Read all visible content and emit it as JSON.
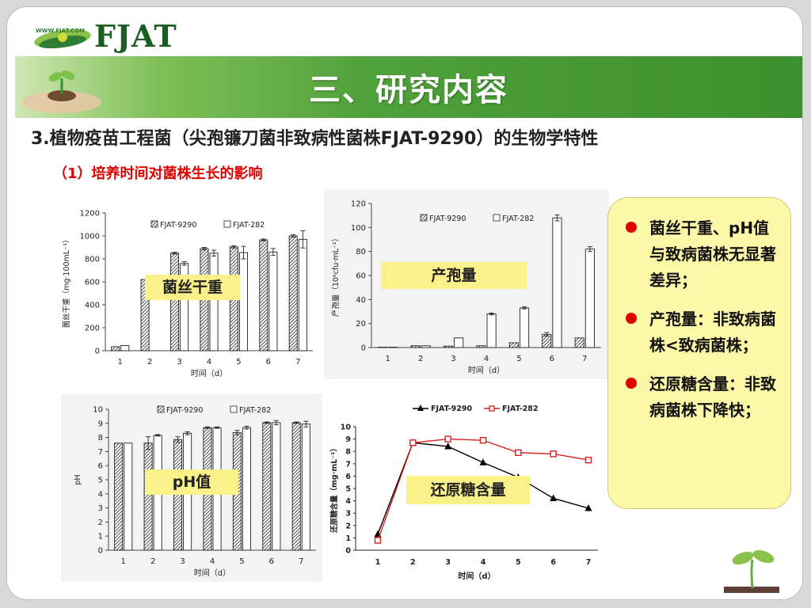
{
  "logo": {
    "brand": "FJAT",
    "url": "WWW.FJAT.COM"
  },
  "banner": {
    "title": "三、研究内容"
  },
  "subtitle": "3.植物疫苗工程菌（尖孢镰刀菌非致病性菌株FJAT-9290）的生物学特性",
  "section": "（1）培养时间对菌株生长的影响",
  "note": {
    "items": [
      "菌丝干重、pH值与致病菌株无显著差异；",
      "产孢量：非致病菌株<致病菌株；",
      "还原糖含量：非致病菌株下降快；"
    ]
  },
  "colors": {
    "accent_red": "#e00000",
    "banner_green": "#4fa13a",
    "note_yellow": "#fdf7a8",
    "tag_yellow": "#fbf18a"
  },
  "chart_data": [
    {
      "type": "bar",
      "tag": "菌丝干重",
      "categories": [
        "1",
        "2",
        "3",
        "4",
        "5",
        "6",
        "7"
      ],
      "series": [
        {
          "name": "FJAT-9290",
          "values": [
            35,
            620,
            850,
            890,
            905,
            965,
            1000
          ],
          "errors": [
            0,
            0,
            8,
            10,
            10,
            8,
            10
          ]
        },
        {
          "name": "FJAT-282",
          "values": [
            45,
            0,
            760,
            850,
            855,
            860,
            970
          ],
          "errors": [
            0,
            0,
            15,
            25,
            55,
            30,
            75
          ]
        }
      ],
      "xlabel": "时间（d）",
      "ylabel": "菌丝干重（mg·100mL⁻¹）",
      "ylim": [
        0,
        1200
      ],
      "yticks": [
        "0",
        "200",
        "400",
        "600",
        "800",
        "1000",
        "1200"
      ]
    },
    {
      "type": "bar",
      "tag": "产孢量",
      "categories": [
        "1",
        "2",
        "3",
        "4",
        "5",
        "6",
        "7"
      ],
      "series": [
        {
          "name": "FJAT-9290",
          "values": [
            0.3,
            1.5,
            1.2,
            1.5,
            4,
            11,
            8
          ],
          "errors": [
            0,
            0,
            0,
            0,
            0,
            1.5,
            0
          ]
        },
        {
          "name": "FJAT-282",
          "values": [
            0.3,
            1.5,
            8,
            28,
            33,
            108,
            82
          ],
          "errors": [
            0,
            0,
            0,
            0.8,
            0.8,
            2.5,
            2
          ]
        }
      ],
      "xlabel": "时间（d）",
      "ylabel": "产孢量（10⁶cfu·mL⁻¹）",
      "ylim": [
        0,
        120
      ],
      "yticks": [
        "0",
        "20",
        "40",
        "60",
        "80",
        "100",
        "120"
      ]
    },
    {
      "type": "bar",
      "tag": "pH值",
      "categories": [
        "1",
        "2",
        "3",
        "4",
        "5",
        "6",
        "7"
      ],
      "series": [
        {
          "name": "FJAT-9290",
          "values": [
            7.6,
            7.6,
            7.85,
            8.7,
            8.35,
            9.05,
            9.05
          ],
          "errors": [
            0,
            0.45,
            0.2,
            0.05,
            0.15,
            0.05,
            0.05
          ]
        },
        {
          "name": "FJAT-282",
          "values": [
            7.6,
            8.15,
            8.3,
            8.7,
            8.7,
            9.05,
            8.95
          ],
          "errors": [
            0,
            0.05,
            0.1,
            0.05,
            0.1,
            0.15,
            0.2
          ]
        }
      ],
      "xlabel": "时间（d）",
      "ylabel": "pH",
      "ylim": [
        0,
        10
      ],
      "yticks": [
        "0",
        "1",
        "2",
        "3",
        "4",
        "5",
        "6",
        "7",
        "8",
        "9",
        "10"
      ]
    },
    {
      "type": "line",
      "tag": "还原糖含量",
      "x": [
        "1",
        "2",
        "3",
        "4",
        "5",
        "6",
        "7"
      ],
      "series": [
        {
          "name": "FJAT-9290",
          "values": [
            1.3,
            8.7,
            8.4,
            7.1,
            5.9,
            4.2,
            3.4
          ],
          "color": "#000000",
          "marker": "triangle"
        },
        {
          "name": "FJAT-282",
          "values": [
            0.8,
            8.7,
            9.0,
            8.9,
            7.9,
            7.8,
            7.3
          ],
          "color": "#d62020",
          "marker": "square"
        }
      ],
      "xlabel": "时间（d）",
      "ylabel": "还原糖含量（mg·mL⁻¹）",
      "ylim": [
        0,
        10
      ],
      "yticks": [
        "0",
        "1",
        "2",
        "3",
        "4",
        "5",
        "6",
        "7",
        "8",
        "9",
        "10"
      ]
    }
  ]
}
